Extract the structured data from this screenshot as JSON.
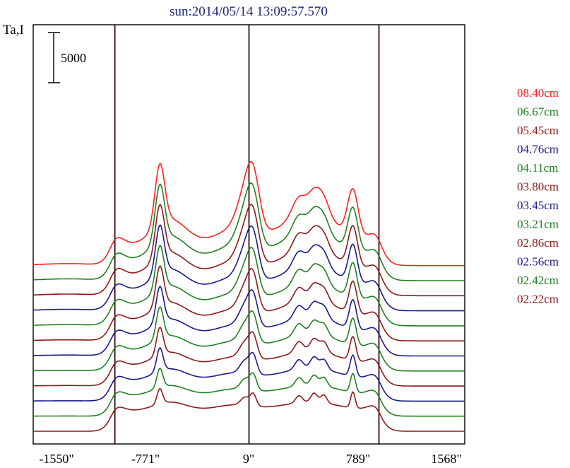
{
  "chart_data": {
    "type": "line",
    "title": "sun:2014/05/14 13:09:57.570",
    "ylabel": "Ta,I",
    "xlabel": "",
    "scale_bar_label": "5000",
    "x_ticks": [
      "-1550\"",
      "-771\"",
      "9\"",
      "789\"",
      "1568\""
    ],
    "xlim": [
      -1550,
      1568
    ],
    "vertical_lines": [
      -960,
      9,
      948
    ],
    "grid": false,
    "legend_position": "right",
    "series_offset": 1500,
    "series": [
      {
        "name": "08.40cm",
        "color": "#ff2020",
        "baseline": 500
      },
      {
        "name": "06.67cm",
        "color": "#208020",
        "baseline": 500
      },
      {
        "name": "05.45cm",
        "color": "#8b1a1a",
        "baseline": 500
      },
      {
        "name": "04.76cm",
        "color": "#1a1a8b",
        "baseline": 500
      },
      {
        "name": "04.11cm",
        "color": "#208020",
        "baseline": 500
      },
      {
        "name": "03.80cm",
        "color": "#8b1a1a",
        "baseline": 500
      },
      {
        "name": "03.45cm",
        "color": "#1a1a8b",
        "baseline": 500
      },
      {
        "name": "03.21cm",
        "color": "#208020",
        "baseline": 500
      },
      {
        "name": "02.86cm",
        "color": "#8b1a1a",
        "baseline": 500
      },
      {
        "name": "02.56cm",
        "color": "#1a1a8b",
        "baseline": 500
      },
      {
        "name": "02.42cm",
        "color": "#208020",
        "baseline": 500
      },
      {
        "name": "02.22cm",
        "color": "#8b1a1a",
        "baseline": 500
      }
    ]
  }
}
